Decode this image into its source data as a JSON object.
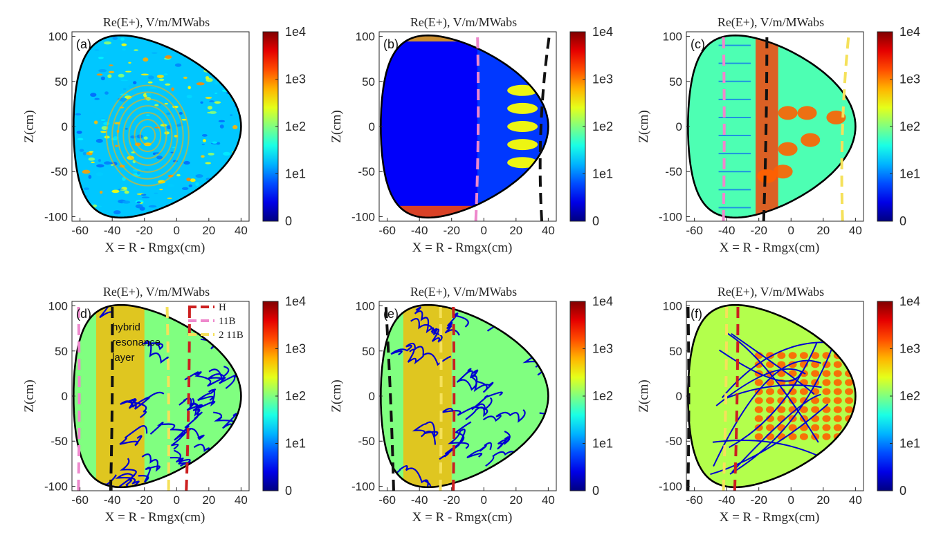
{
  "chart_data": [
    {
      "panel": "(a)",
      "type": "heatmap",
      "title": "Re(E+), V/m/MWabs",
      "xlabel": "X = R - Rmgx(cm)",
      "ylabel": "Z(cm)",
      "xlim": [
        -65,
        45
      ],
      "ylim": [
        -105,
        105
      ],
      "xticks": [
        -60,
        -40,
        -20,
        0,
        20,
        40
      ],
      "yticks": [
        -100,
        -50,
        0,
        50,
        100
      ],
      "colorbar": {
        "ticks": [
          "0",
          "1e1",
          "1e2",
          "1e3",
          "1e4"
        ],
        "scale": "log"
      },
      "pattern": "speckle",
      "base_level": 0.32,
      "resonance_lines": []
    },
    {
      "panel": "(b)",
      "type": "heatmap",
      "title": "Re(E+), V/m/MWabs",
      "xlabel": "X = R - Rmgx(cm)",
      "ylabel": "Z(cm)",
      "xlim": [
        -65,
        45
      ],
      "ylim": [
        -105,
        105
      ],
      "xticks": [
        -60,
        -40,
        -20,
        0,
        20,
        40
      ],
      "yticks": [
        -100,
        -50,
        0,
        50,
        100
      ],
      "colorbar": {
        "ticks": [
          "0",
          "1e1",
          "1e2",
          "1e3",
          "1e4"
        ],
        "scale": "log"
      },
      "pattern": "cutoff",
      "base_level": 0.18,
      "resonance_lines": [
        {
          "species": "11B",
          "color": "#ee88cc",
          "x_bottom": -5,
          "x_top": -4,
          "curve": 2
        },
        {
          "species": "hybrid",
          "color": "#111111",
          "x_bottom": 36,
          "x_top": 41,
          "curve": -6
        }
      ]
    },
    {
      "panel": "(c)",
      "type": "heatmap",
      "title": "Re(E+), V/m/MWabs",
      "xlabel": "X = R - Rmgx(cm)",
      "ylabel": "Z(cm)",
      "xlim": [
        -65,
        45
      ],
      "ylim": [
        -105,
        105
      ],
      "xticks": [
        -60,
        -40,
        -20,
        0,
        20,
        40
      ],
      "yticks": [
        -100,
        -50,
        0,
        50,
        100
      ],
      "colorbar": {
        "ticks": [
          "0",
          "1e1",
          "1e2",
          "1e3",
          "1e4"
        ],
        "scale": "log"
      },
      "pattern": "blobs",
      "base_level": 0.45,
      "resonance_lines": [
        {
          "species": "11B",
          "color": "#ee88cc",
          "x_bottom": -42,
          "x_top": -42,
          "curve": 1
        },
        {
          "species": "hybrid",
          "color": "#111111",
          "x_bottom": -17,
          "x_top": -15,
          "curve": 1
        },
        {
          "species": "2 11B",
          "color": "#f5e15a",
          "x_bottom": 32,
          "x_top": 36,
          "curve": -4
        }
      ]
    },
    {
      "panel": "(d)",
      "type": "heatmap",
      "title": "Re(E+), V/m/MWabs",
      "xlabel": "X = R - Rmgx(cm)",
      "ylabel": "Z(cm)",
      "xlim": [
        -65,
        45
      ],
      "ylim": [
        -105,
        105
      ],
      "xticks": [
        -60,
        -40,
        -20,
        0,
        20,
        40
      ],
      "yticks": [
        -100,
        -50,
        0,
        50,
        100
      ],
      "colorbar": {
        "ticks": [
          "0",
          "1e1",
          "1e2",
          "1e3",
          "1e4"
        ],
        "scale": "log"
      },
      "pattern": "contours",
      "base_level": 0.5,
      "annotation": [
        "hybrid",
        "resonance",
        "layer"
      ],
      "legend": [
        {
          "label": "H",
          "color": "#cc1f1f"
        },
        {
          "label": "11B",
          "color": "#ee88cc"
        },
        {
          "label": "2 11B",
          "color": "#f5e15a"
        }
      ],
      "resonance_lines": [
        {
          "species": "11B",
          "color": "#ee88cc",
          "x_bottom": -61,
          "x_top": -61,
          "curve": 1
        },
        {
          "species": "hybrid",
          "color": "#111111",
          "x_bottom": -41,
          "x_top": -40,
          "curve": 1
        },
        {
          "species": "2 11B",
          "color": "#f5e15a",
          "x_bottom": -5,
          "x_top": -6,
          "curve": 1
        },
        {
          "species": "H",
          "color": "#cc1f1f",
          "x_bottom": 6,
          "x_top": 8,
          "curve": 1
        }
      ]
    },
    {
      "panel": "(e)",
      "type": "heatmap",
      "title": "Re(E+), V/m/MWabs",
      "xlabel": "X = R - Rmgx(cm)",
      "ylabel": "Z(cm)",
      "xlim": [
        -65,
        45
      ],
      "ylim": [
        -105,
        105
      ],
      "xticks": [
        -60,
        -40,
        -20,
        0,
        20,
        40
      ],
      "yticks": [
        -100,
        -50,
        0,
        50,
        100
      ],
      "colorbar": {
        "ticks": [
          "0",
          "1e1",
          "1e2",
          "1e3",
          "1e4"
        ],
        "scale": "log"
      },
      "pattern": "contours",
      "base_level": 0.5,
      "resonance_lines": [
        {
          "species": "hybrid",
          "color": "#111111",
          "x_bottom": -56,
          "x_top": -61,
          "curve": 1
        },
        {
          "species": "2 11B",
          "color": "#f5e15a",
          "x_bottom": -27,
          "x_top": -27,
          "curve": 1
        },
        {
          "species": "H",
          "color": "#cc1f1f",
          "x_bottom": -19,
          "x_top": -19,
          "curve": 1
        }
      ]
    },
    {
      "panel": "(f)",
      "type": "heatmap",
      "title": "Re(E+), V/m/MWabs",
      "xlabel": "X = R - Rmgx(cm)",
      "ylabel": "Z(cm)",
      "xlim": [
        -65,
        45
      ],
      "ylim": [
        -105,
        105
      ],
      "xticks": [
        -60,
        -40,
        -20,
        0,
        20,
        40
      ],
      "yticks": [
        -100,
        -50,
        0,
        50,
        100
      ],
      "colorbar": {
        "ticks": [
          "0",
          "1e1",
          "1e2",
          "1e3",
          "1e4"
        ],
        "scale": "log"
      },
      "pattern": "grid",
      "base_level": 0.55,
      "resonance_lines": [
        {
          "species": "hybrid",
          "color": "#111111",
          "x_bottom": -64,
          "x_top": -64,
          "curve": 1
        },
        {
          "species": "2 11B",
          "color": "#f5e15a",
          "x_bottom": -42,
          "x_top": -40,
          "curve": 1
        },
        {
          "species": "H",
          "color": "#cc1f1f",
          "x_bottom": -35,
          "x_top": -33,
          "curve": 1
        }
      ]
    }
  ]
}
